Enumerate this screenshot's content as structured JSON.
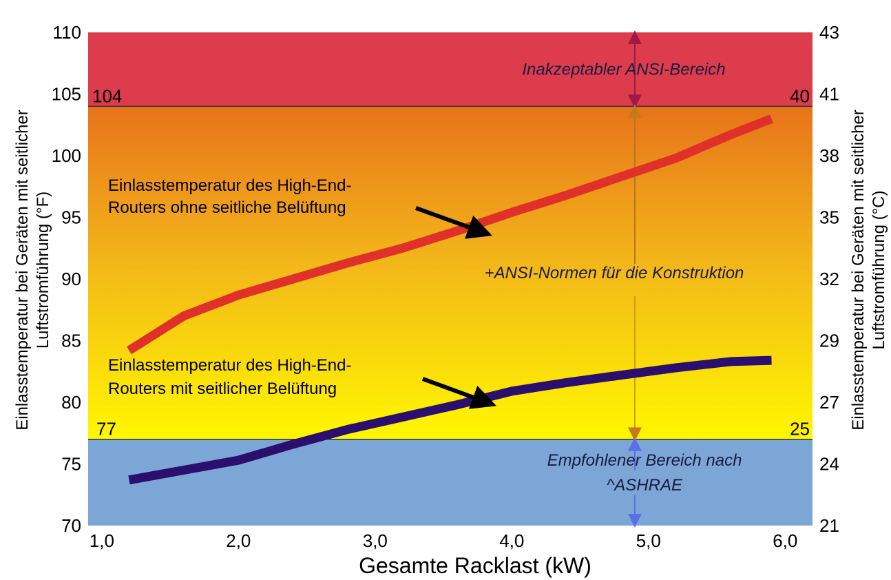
{
  "chart_data": {
    "type": "line",
    "xlabel": "Gesamte Racklast (kW)",
    "ylabel_left": "Einlasstemperatur bei Geräten mit seitlicher Luftstromführung (°F)",
    "ylabel_right": "Einlasstemperatur bei Geräten mit seitlicher Luftstromführung (°C)",
    "xlim": [
      0.9,
      6.2
    ],
    "ylim": [
      70,
      110
    ],
    "x_ticks": [
      "1,0",
      "2,0",
      "3,0",
      "4,0",
      "5,0",
      "6,0"
    ],
    "x_tick_values": [
      1,
      2,
      3,
      4,
      5,
      6
    ],
    "y_ticks_left": [
      "70",
      "75",
      "80",
      "85",
      "90",
      "95",
      "100",
      "105",
      "110"
    ],
    "y_tick_values_left": [
      70,
      75,
      80,
      85,
      90,
      95,
      100,
      105,
      110
    ],
    "y_ticks_right": [
      "21",
      "24",
      "27",
      "29",
      "32",
      "35",
      "38",
      "41",
      "43"
    ],
    "regions": [
      {
        "name": "Inakzeptabler ANSI-Bereich",
        "from": 104,
        "to": 110,
        "color": "#dc3c4c"
      },
      {
        "name": "+ANSI-Normen für die Konstruktion",
        "from": 77,
        "to": 104,
        "color_top": "#e8731a",
        "color_bottom": "#fff700"
      },
      {
        "name": "Empfohlener Bereich nach ^ASHRAE",
        "from": 70,
        "to": 77,
        "color": "#7ba6d6"
      }
    ],
    "threshold_labels": {
      "upper_left": "104",
      "upper_right": "40",
      "lower_left": "77",
      "lower_right": "25"
    },
    "region_labels": {
      "top": "Inakzeptabler ANSI-Bereich",
      "middle": "+ANSI-Normen für die Konstruktion",
      "bottom_line1": "Empfohlener Bereich nach",
      "bottom_line2": "^ASHRAE"
    },
    "range_arrow_x": 4.9,
    "series": [
      {
        "label_line1": "Einlasstemperatur des High-End-",
        "label_line2": "Routers ohne seitliche Belüftung",
        "color": "#e0302a",
        "x": [
          1.2,
          1.6,
          2.0,
          2.4,
          2.8,
          3.2,
          3.6,
          4.0,
          4.4,
          4.8,
          5.2,
          5.6,
          5.9
        ],
        "y": [
          84.2,
          87.0,
          88.7,
          90.0,
          91.3,
          92.5,
          93.9,
          95.4,
          96.8,
          98.3,
          99.8,
          101.7,
          103.0
        ]
      },
      {
        "label_line1": "Einlasstemperatur des High-End-",
        "label_line2": "Routers mit seitlicher Belüftung",
        "color": "#2a0f6e",
        "x": [
          1.2,
          1.6,
          2.0,
          2.4,
          2.8,
          3.2,
          3.6,
          4.0,
          4.4,
          4.8,
          5.2,
          5.6,
          5.9
        ],
        "y": [
          73.7,
          74.5,
          75.3,
          76.6,
          77.8,
          78.8,
          79.8,
          80.9,
          81.6,
          82.2,
          82.8,
          83.3,
          83.4
        ]
      }
    ]
  }
}
